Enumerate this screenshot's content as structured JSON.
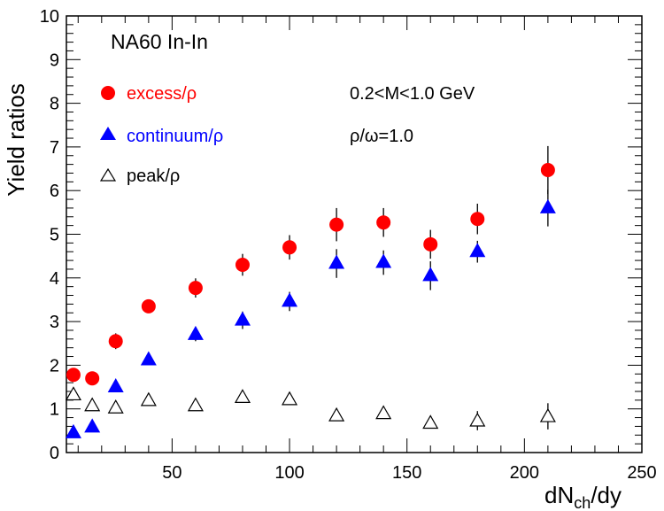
{
  "chart_data": {
    "type": "scatter",
    "title": "NA60 In-In",
    "xlabel": {
      "main": "dN",
      "sub": "ch",
      "suffix": "/dy"
    },
    "ylabel": "Yield ratios",
    "xlim": [
      5,
      250
    ],
    "ylim": [
      0,
      10
    ],
    "x_ticks": [
      50,
      100,
      150,
      200,
      250
    ],
    "y_ticks": [
      0,
      1,
      2,
      3,
      4,
      5,
      6,
      7,
      8,
      9,
      10
    ],
    "x_tick_labels": [
      "50",
      "100",
      "150",
      "200",
      "250"
    ],
    "y_tick_labels": [
      "0",
      "1",
      "2",
      "3",
      "4",
      "5",
      "6",
      "7",
      "8",
      "9",
      "10"
    ],
    "grid": false,
    "legend_position": "top-left",
    "annotations": [
      "0.2<M<1.0 GeV",
      "ρ/ω=1.0"
    ],
    "series": [
      {
        "name": "excess/ρ",
        "marker": "circle",
        "color": "#ff0000",
        "x": [
          8,
          16,
          26,
          40,
          60,
          80,
          100,
          120,
          140,
          160,
          180,
          210
        ],
        "y": [
          1.78,
          1.7,
          2.55,
          3.35,
          3.77,
          4.3,
          4.7,
          5.22,
          5.27,
          4.77,
          5.35,
          6.47
        ],
        "err": [
          0.1,
          0.15,
          0.18,
          0.1,
          0.22,
          0.25,
          0.28,
          0.38,
          0.33,
          0.33,
          0.35,
          0.55
        ]
      },
      {
        "name": "continuum/ρ",
        "marker": "triangle",
        "color": "#0000ff",
        "x": [
          8,
          16,
          26,
          40,
          60,
          80,
          100,
          120,
          140,
          160,
          180,
          210
        ],
        "y": [
          0.45,
          0.58,
          1.5,
          2.12,
          2.7,
          3.03,
          3.46,
          4.33,
          4.35,
          4.05,
          4.6,
          5.6
        ],
        "err": [
          0.05,
          0.08,
          0.1,
          0.1,
          0.15,
          0.2,
          0.22,
          0.33,
          0.28,
          0.33,
          0.25,
          0.42
        ]
      },
      {
        "name": "peak/ρ",
        "marker": "open-triangle",
        "color": "#000000",
        "x": [
          8,
          16,
          26,
          40,
          60,
          80,
          100,
          120,
          140,
          160,
          180,
          210
        ],
        "y": [
          1.33,
          1.08,
          1.03,
          1.2,
          1.08,
          1.27,
          1.22,
          0.85,
          0.9,
          0.68,
          0.73,
          0.83
        ],
        "err": [
          0.05,
          0.05,
          0.05,
          0.07,
          0.05,
          0.1,
          0.08,
          0.12,
          0.1,
          0.12,
          0.22,
          0.3
        ]
      }
    ]
  }
}
